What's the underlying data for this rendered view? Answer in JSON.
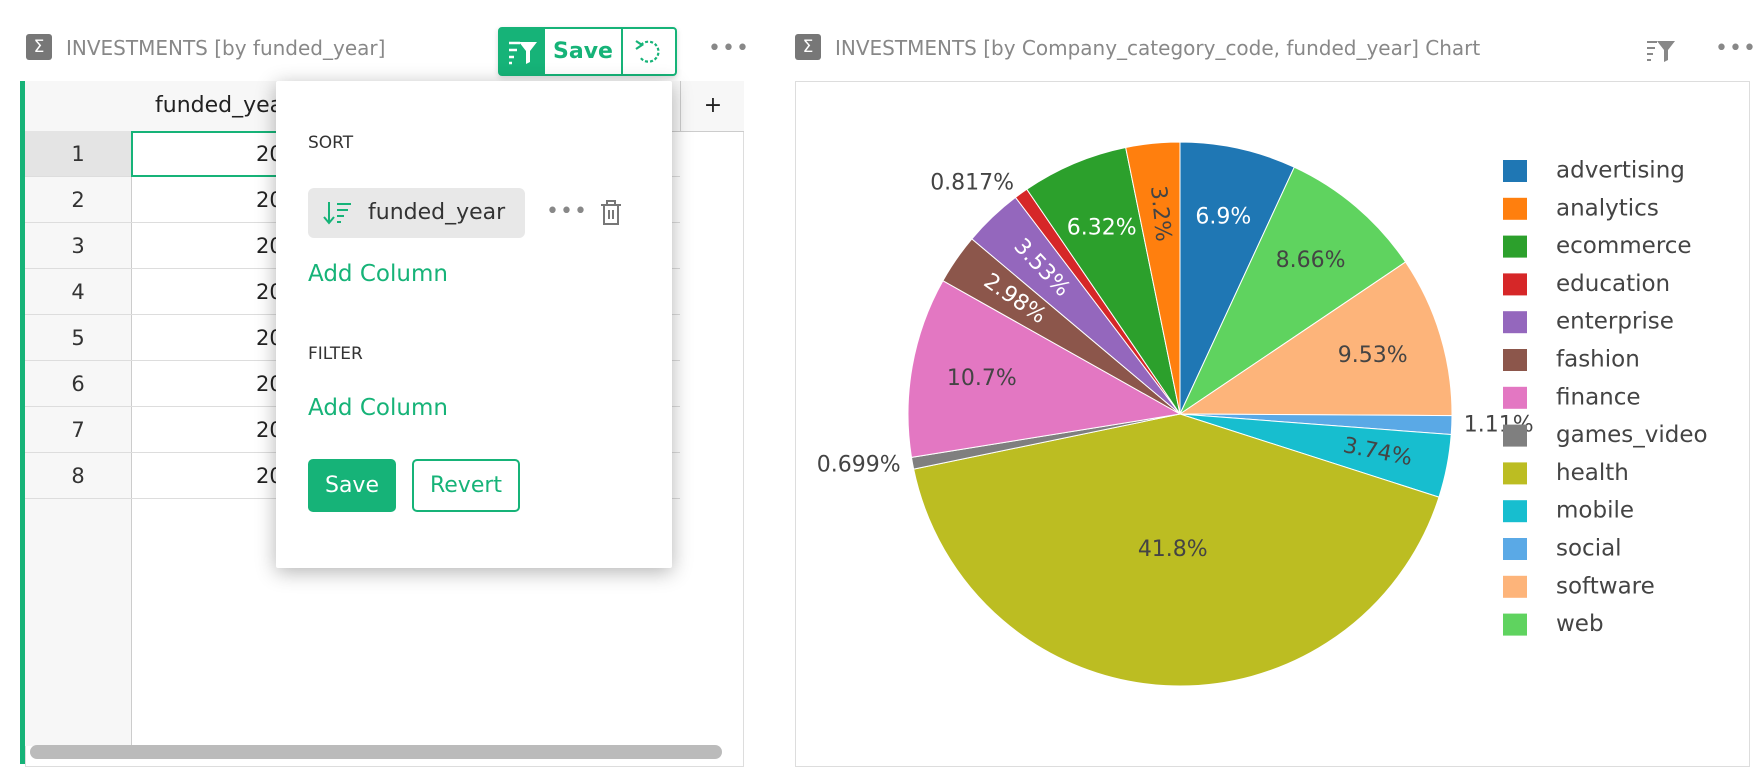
{
  "left_widget": {
    "title": "INVESTMENTS [by funded_year]",
    "save_button": "Save",
    "table": {
      "header": "funded_year",
      "add_column": "+",
      "row_numbers": [
        1,
        2,
        3,
        4,
        5,
        6,
        7,
        8
      ],
      "cells": [
        "20",
        "20",
        "20",
        "20",
        "20",
        "20",
        "20",
        "20"
      ]
    }
  },
  "sort_filter_popup": {
    "sort_heading": "SORT",
    "sort_column": "funded_year",
    "sort_add_column": "Add Column",
    "filter_heading": "FILTER",
    "filter_add_column": "Add Column",
    "save_button": "Save",
    "revert_button": "Revert"
  },
  "chart_widget": {
    "title": "INVESTMENTS [by Company_category_code, funded_year] Chart"
  },
  "chart_data": {
    "type": "pie",
    "categories": [
      "advertising",
      "analytics",
      "ecommerce",
      "education",
      "enterprise",
      "fashion",
      "finance",
      "games_video",
      "health",
      "mobile",
      "social",
      "software",
      "web"
    ],
    "values": [
      6.9,
      3.2,
      6.32,
      0.817,
      3.53,
      2.98,
      10.7,
      0.699,
      41.8,
      3.74,
      1.11,
      9.53,
      8.66
    ],
    "value_labels": [
      "6.9%",
      "3.2%",
      "6.32%",
      "0.817%",
      "3.53%",
      "2.98%",
      "10.7%",
      "0.699%",
      "41.8%",
      "3.74%",
      "1.11%",
      "9.53%",
      "8.66%"
    ],
    "colors": [
      "#1f77b4",
      "#ff7f0e",
      "#2ca02c",
      "#d62728",
      "#9467bd",
      "#8c564b",
      "#e377c2",
      "#7f7f7f",
      "#bcbd22",
      "#17becf",
      "#5aa9e6",
      "#fdb47a",
      "#5fd35f"
    ]
  }
}
